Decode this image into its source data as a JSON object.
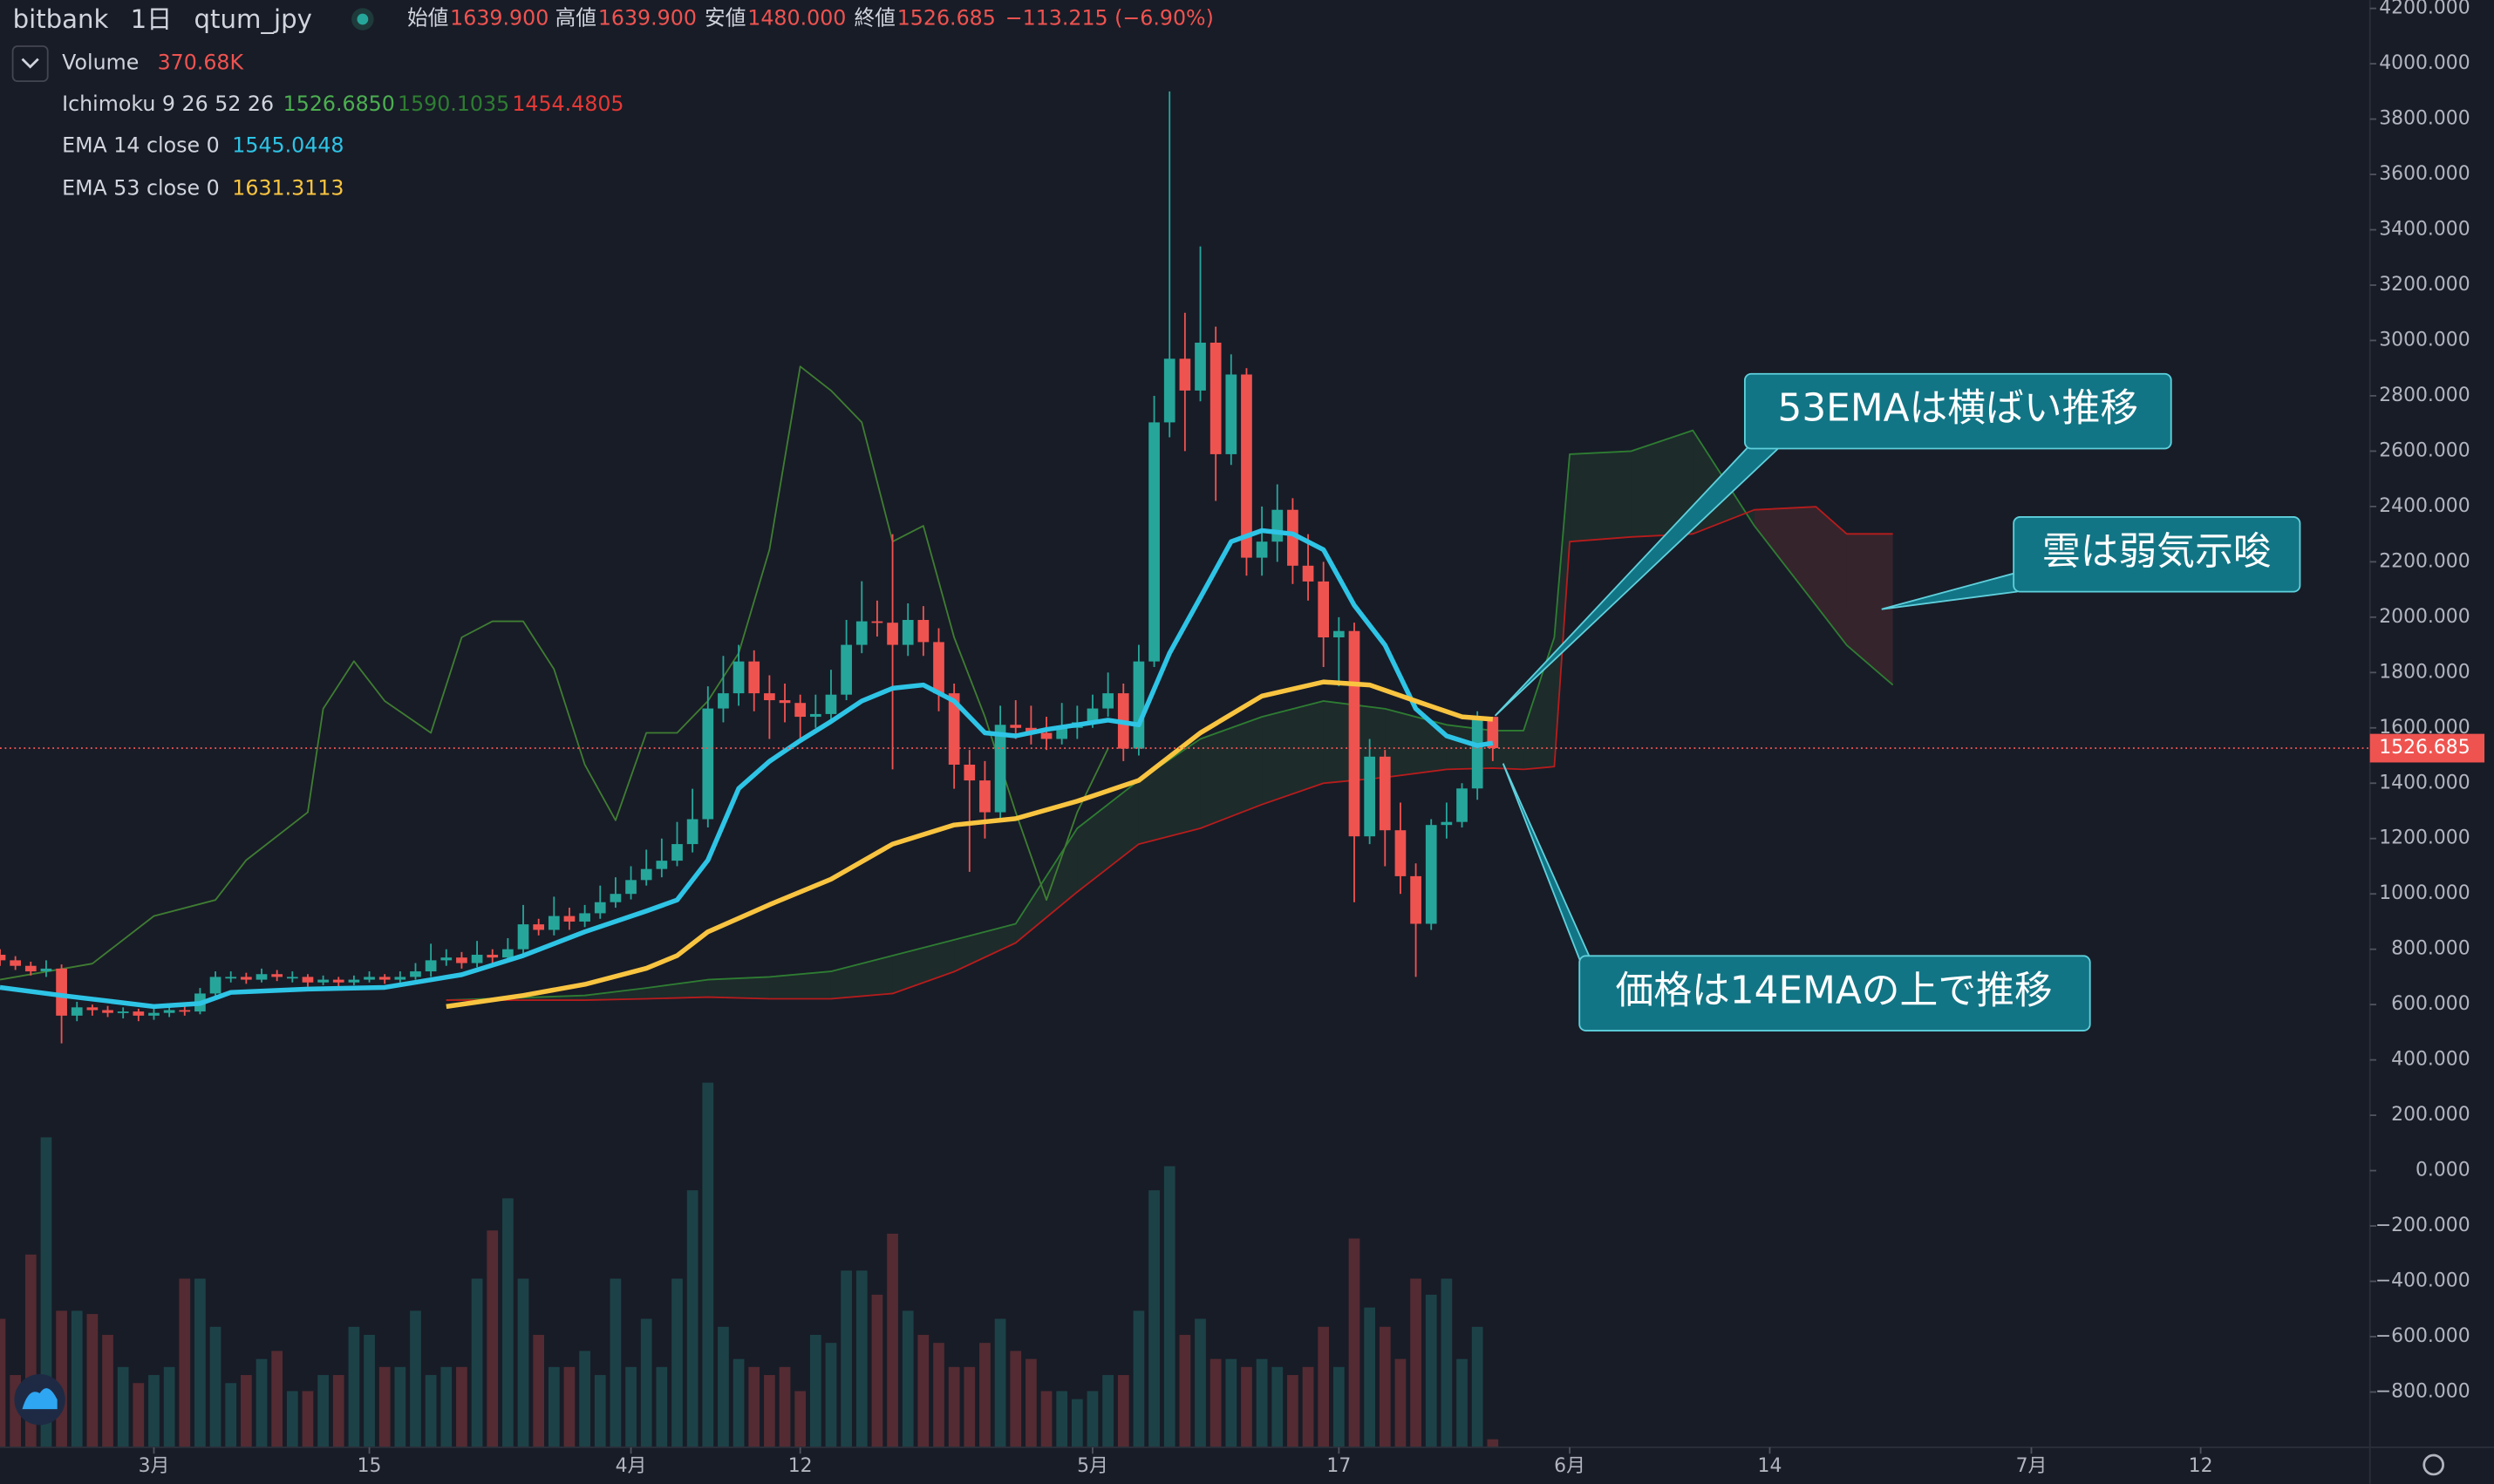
{
  "chart_data": {
    "type": "candlestick",
    "header": {
      "exchange": "bitbank",
      "interval": "1日",
      "symbol": "qtum_jpy",
      "open_label": "始値",
      "open": "1639.900",
      "high_label": "高値",
      "high": "1639.900",
      "low_label": "安値",
      "low": "1480.000",
      "close_label": "終値",
      "close": "1526.685",
      "change": "−113.215 (−6.90%)"
    },
    "legend": {
      "volume": {
        "name": "Volume",
        "value": "370.68K"
      },
      "ichimoku": {
        "name": "Ichimoku 9 26 52 26",
        "values": [
          "1526.6850",
          "1590.1035",
          "1454.4805"
        ]
      },
      "ema14": {
        "name": "EMA 14 close 0",
        "value": "1545.0448"
      },
      "ema53": {
        "name": "EMA 53 close 0",
        "value": "1631.3113"
      }
    },
    "last_price_label": "1526.685",
    "annotations": [
      "53EMAは横ばい推移",
      "雲は弱気示唆",
      "価格は14EMAの上で推移"
    ],
    "xlim": [
      -10,
      144
    ],
    "xticks": [
      {
        "value": 0,
        "label": "3月"
      },
      {
        "value": 14,
        "label": "15"
      },
      {
        "value": 31,
        "label": "4月"
      },
      {
        "value": 42,
        "label": "12"
      },
      {
        "value": 61,
        "label": "5月"
      },
      {
        "value": 77,
        "label": "17"
      },
      {
        "value": 92,
        "label": "6月"
      },
      {
        "value": 105,
        "label": "14"
      },
      {
        "value": 122,
        "label": "7月"
      },
      {
        "value": 133,
        "label": "12"
      }
    ],
    "ylim": [
      -1000,
      4230
    ],
    "yticks": [
      {
        "value": -800,
        "label": "−800.000"
      },
      {
        "value": -600,
        "label": "−600.000"
      },
      {
        "value": -400,
        "label": "−400.000"
      },
      {
        "value": -200,
        "label": "−200.000"
      },
      {
        "value": 0,
        "label": "0.000"
      },
      {
        "value": 200,
        "label": "200.000"
      },
      {
        "value": 400,
        "label": "400.000"
      },
      {
        "value": 600,
        "label": "600.000"
      },
      {
        "value": 800,
        "label": "800.000"
      },
      {
        "value": 1000,
        "label": "1000.000"
      },
      {
        "value": 1200,
        "label": "1200.000"
      },
      {
        "value": 1400,
        "label": "1400.000"
      },
      {
        "value": 1600,
        "label": "1600.000"
      },
      {
        "value": 1800,
        "label": "1800.000"
      },
      {
        "value": 2000,
        "label": "2000.000"
      },
      {
        "value": 2200,
        "label": "2200.000"
      },
      {
        "value": 2400,
        "label": "2400.000"
      },
      {
        "value": 2600,
        "label": "2600.000"
      },
      {
        "value": 2800,
        "label": "2800.000"
      },
      {
        "value": 3000,
        "label": "3000.000"
      },
      {
        "value": 3200,
        "label": "3200.000"
      },
      {
        "value": 3400,
        "label": "3400.000"
      },
      {
        "value": 3600,
        "label": "3600.000"
      },
      {
        "value": 3800,
        "label": "3800.000"
      },
      {
        "value": 4000,
        "label": "4000.000"
      },
      {
        "value": 4200,
        "label": "4200.000"
      }
    ],
    "grid": false,
    "up_color": "#26a69a",
    "down_color": "#ef5350",
    "x": [
      -10,
      -9,
      -8,
      -7,
      -6,
      -5,
      -4,
      -3,
      -2,
      -1,
      0,
      1,
      2,
      3,
      4,
      5,
      6,
      7,
      8,
      9,
      10,
      11,
      12,
      13,
      14,
      15,
      16,
      17,
      18,
      19,
      20,
      21,
      22,
      23,
      24,
      25,
      26,
      27,
      28,
      29,
      30,
      31,
      32,
      33,
      34,
      35,
      36,
      37,
      38,
      39,
      40,
      41,
      42,
      43,
      44,
      45,
      46,
      47,
      48,
      49,
      50,
      51,
      52,
      53,
      54,
      55,
      56,
      57,
      58,
      59,
      60,
      61,
      62,
      63,
      64,
      65,
      66,
      67,
      68,
      69,
      70,
      71,
      72,
      73,
      74,
      75,
      76,
      77,
      78,
      79,
      80,
      81,
      82,
      83,
      84,
      85,
      86,
      87
    ],
    "open": [
      780,
      760,
      740,
      720,
      730,
      560,
      590,
      580,
      570,
      575,
      560,
      570,
      580,
      575,
      640,
      700,
      700,
      690,
      710,
      700,
      700,
      680,
      690,
      680,
      690,
      700,
      690,
      700,
      720,
      760,
      770,
      750,
      780,
      770,
      800,
      890,
      870,
      920,
      900,
      930,
      970,
      1000,
      1050,
      1090,
      1120,
      1180,
      1270,
      1670,
      1725,
      1840,
      1725,
      1700,
      1690,
      1640,
      1650,
      1720,
      1900,
      1985,
      1980,
      1900,
      1990,
      1910,
      1725,
      1467,
      1410,
      1295,
      1611,
      1600,
      1582,
      1560,
      1600,
      1620,
      1670,
      1725,
      1525,
      1840,
      2704,
      2934,
      2819,
      2992,
      2589,
      2877,
      2215,
      2273,
      2388,
      2186,
      2129,
      1927,
      1950,
      1208,
      1496,
      1230,
      1064,
      892,
      1249,
      1260,
      1381,
      1639.9
    ],
    "high": [
      800,
      775,
      755,
      760,
      745,
      610,
      600,
      595,
      590,
      585,
      590,
      595,
      595,
      660,
      720,
      720,
      715,
      730,
      725,
      720,
      710,
      705,
      700,
      705,
      720,
      710,
      720,
      750,
      820,
      800,
      790,
      830,
      800,
      840,
      960,
      910,
      990,
      950,
      960,
      1030,
      1060,
      1100,
      1160,
      1200,
      1260,
      1380,
      1750,
      1860,
      1900,
      1880,
      1790,
      1760,
      1720,
      1720,
      1810,
      1990,
      2130,
      2060,
      2300,
      2050,
      2040,
      1960,
      1760,
      1520,
      1480,
      1680,
      1700,
      1680,
      1640,
      1690,
      1680,
      1720,
      1800,
      1760,
      1900,
      2800,
      3900,
      3100,
      3340,
      3050,
      2950,
      2900,
      2400,
      2480,
      2430,
      2300,
      2200,
      2000,
      1980,
      1560,
      1520,
      1330,
      1110,
      1270,
      1330,
      1400,
      1660,
      1639.9
    ],
    "low": [
      740,
      725,
      705,
      700,
      460,
      540,
      560,
      555,
      550,
      540,
      545,
      555,
      560,
      565,
      630,
      680,
      675,
      680,
      685,
      680,
      665,
      670,
      665,
      670,
      680,
      675,
      680,
      690,
      700,
      740,
      730,
      735,
      750,
      755,
      780,
      850,
      850,
      870,
      880,
      910,
      950,
      980,
      1030,
      1060,
      1100,
      1150,
      1240,
      1620,
      1680,
      1660,
      1560,
      1620,
      1560,
      1600,
      1620,
      1700,
      1870,
      1930,
      1450,
      1860,
      1860,
      1660,
      1380,
      1080,
      1200,
      1260,
      1560,
      1540,
      1520,
      1540,
      1560,
      1600,
      1640,
      1480,
      1500,
      1820,
      2650,
      2600,
      2780,
      2420,
      2550,
      2150,
      2150,
      2200,
      2120,
      2060,
      1820,
      1750,
      970,
      1180,
      1100,
      1000,
      700,
      870,
      1200,
      1240,
      1340,
      1480
    ],
    "close": [
      760,
      740,
      720,
      730,
      560,
      590,
      580,
      570,
      575,
      560,
      570,
      580,
      575,
      640,
      700,
      700,
      690,
      710,
      700,
      700,
      680,
      690,
      680,
      690,
      700,
      690,
      700,
      720,
      760,
      770,
      750,
      780,
      770,
      800,
      890,
      870,
      920,
      900,
      930,
      970,
      1000,
      1050,
      1090,
      1120,
      1180,
      1270,
      1670,
      1725,
      1840,
      1725,
      1700,
      1690,
      1640,
      1650,
      1720,
      1900,
      1985,
      1980,
      1900,
      1990,
      1910,
      1725,
      1467,
      1410,
      1295,
      1611,
      1600,
      1582,
      1560,
      1600,
      1620,
      1670,
      1725,
      1525,
      1840,
      2704,
      2934,
      2819,
      2992,
      2589,
      2877,
      2215,
      2273,
      2388,
      2186,
      2129,
      1927,
      1950,
      1208,
      1496,
      1230,
      1064,
      892,
      1249,
      1260,
      1381,
      1639.9,
      1526.685
    ],
    "volume_lim": [
      0,
      20000
    ],
    "volume": [
      5920,
      3330,
      8880,
      14280,
      6290,
      6290,
      6140,
      5180,
      3700,
      2960,
      3330,
      3700,
      7770,
      7770,
      5550,
      2960,
      3330,
      4070,
      4440,
      2590,
      2590,
      3330,
      3330,
      5550,
      5180,
      3700,
      3700,
      6290,
      3330,
      3700,
      3700,
      7770,
      9990,
      11470,
      7770,
      5180,
      3700,
      3700,
      4440,
      3330,
      7770,
      3700,
      5920,
      3700,
      7770,
      11840,
      16800,
      5550,
      4070,
      3700,
      3330,
      3700,
      2590,
      5180,
      4810,
      8140,
      8140,
      7030,
      9840,
      6290,
      5180,
      4810,
      3700,
      3700,
      4810,
      5920,
      4440,
      4070,
      2590,
      2590,
      2220,
      2590,
      3330,
      3330,
      6290,
      11840,
      12950,
      5180,
      5920,
      4070,
      4070,
      3700,
      4070,
      3700,
      3330,
      3700,
      5550,
      3700,
      9620,
      6440,
      5550,
      4070,
      7770,
      7030,
      7770,
      4070,
      5550,
      370.68
    ],
    "lines": [
      {
        "color": "#2ec4e6",
        "width": 3,
        "x": [
          -10,
          -6,
          0,
          3,
          5,
          10,
          15,
          20,
          24,
          28,
          32,
          34,
          36,
          38,
          40,
          42,
          44,
          46,
          48,
          50,
          52,
          54,
          56,
          58,
          60,
          62,
          64,
          66,
          68,
          70,
          72,
          74,
          76,
          78,
          80,
          82,
          84,
          86,
          87
        ],
        "values": [
          662,
          633,
          593,
          604,
          644,
          656,
          662,
          708,
          777,
          863,
          938,
          978,
          1122,
          1381,
          1479,
          1554,
          1623,
          1697,
          1743,
          1755,
          1697,
          1582,
          1571,
          1594,
          1611,
          1628,
          1611,
          1870,
          2071,
          2273,
          2313,
          2301,
          2244,
          2043,
          1899,
          1669,
          1571,
          1536,
          1545.0448
        ]
      },
      {
        "color": "#f9c440",
        "width": 3,
        "x": [
          19,
          24,
          28,
          32,
          34,
          36,
          40,
          44,
          48,
          52,
          56,
          60,
          64,
          68,
          72,
          76,
          79,
          82,
          85,
          87
        ],
        "values": [
          593,
          633,
          673,
          731,
          777,
          863,
          961,
          1053,
          1180,
          1249,
          1272,
          1335,
          1410,
          1582,
          1715,
          1766,
          1755,
          1697,
          1640,
          1631.3113
        ]
      },
      {
        "color": "#3f7d32",
        "width": 1,
        "x": [
          -10,
          -4,
          0,
          4,
          6,
          10,
          11,
          13,
          15,
          18,
          20,
          22,
          24,
          26,
          28,
          30,
          32,
          34,
          36,
          38,
          40,
          42,
          44,
          46,
          48,
          50,
          52,
          54,
          56,
          58,
          60,
          62
        ],
        "values": [
          690,
          748,
          920,
          978,
          1122,
          1295,
          1669,
          1841,
          1697,
          1582,
          1927,
          1985,
          1985,
          1812,
          1467,
          1266,
          1582,
          1582,
          1697,
          1870,
          2244,
          2906,
          2819,
          2704,
          2273,
          2330,
          1927,
          1640,
          1295,
          978,
          1295,
          1525
        ]
      }
    ],
    "cloud": {
      "x": [
        19,
        24,
        28,
        32,
        36,
        40,
        44,
        48,
        52,
        56,
        60,
        64,
        68,
        72,
        76,
        80,
        84,
        87,
        89,
        91,
        92,
        96,
        100,
        104,
        108,
        110,
        113
      ],
      "span_a": [
        616,
        625,
        633,
        660,
        690,
        700,
        720,
        777,
        834,
        892,
        1237,
        1410,
        1560,
        1640,
        1697,
        1669,
        1611,
        1590.1035,
        1590,
        1927,
        2589,
        2600,
        2675,
        2330,
        2043,
        1899,
        1755
      ],
      "span_b": [
        616,
        616,
        616,
        621,
        627,
        621,
        621,
        640,
        719,
        823,
        1007,
        1180,
        1237,
        1323,
        1400,
        1421,
        1450,
        1454.4805,
        1450,
        1460,
        2273,
        2290,
        2301,
        2388,
        2399,
        2301,
        2301
      ],
      "color_a": "#2e7d32",
      "color_b": "#b71c1c"
    }
  }
}
